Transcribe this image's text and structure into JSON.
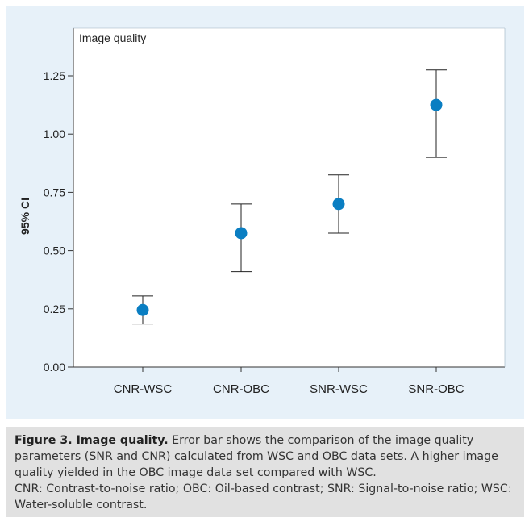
{
  "chart_data": {
    "type": "scatter",
    "subtype": "error-bar",
    "panel_label": "Image quality",
    "ylabel": "95% CI",
    "xlabel": "",
    "ylim": [
      0,
      1.4
    ],
    "yticks": [
      0.0,
      0.25,
      0.5,
      0.75,
      1.0,
      1.25
    ],
    "ytick_labels": [
      "0.00",
      "0.25",
      "0.50",
      "0.75",
      "1.00",
      "1.25"
    ],
    "categories": [
      "CNR-WSC",
      "CNR-OBC",
      "SNR-WSC",
      "SNR-OBC"
    ],
    "series": [
      {
        "name": "95% CI",
        "values": [
          0.245,
          0.575,
          0.7,
          1.125
        ],
        "lower": [
          0.185,
          0.41,
          0.575,
          0.9
        ],
        "upper": [
          0.305,
          0.7,
          0.825,
          1.275
        ]
      }
    ],
    "grid": false,
    "legend": "none"
  },
  "caption": {
    "title": "Figure 3. Image quality.",
    "text": "Error bar shows the comparison of the image quality parameters (SNR and CNR) calculated from WSC and OBC data sets. A higher image quality yielded in the OBC image data set compared with WSC.",
    "abbreviations": "CNR: Contrast-to-noise ratio; OBC: Oil-based contrast; SNR: Signal-to-noise ratio; WSC: Water-soluble contrast."
  },
  "colors": {
    "panel_background": "#e7f1f9",
    "plot_background": "#ffffff",
    "point": "#0a7ec2",
    "axis": "#333333",
    "caption_background": "#e1e1e1"
  }
}
